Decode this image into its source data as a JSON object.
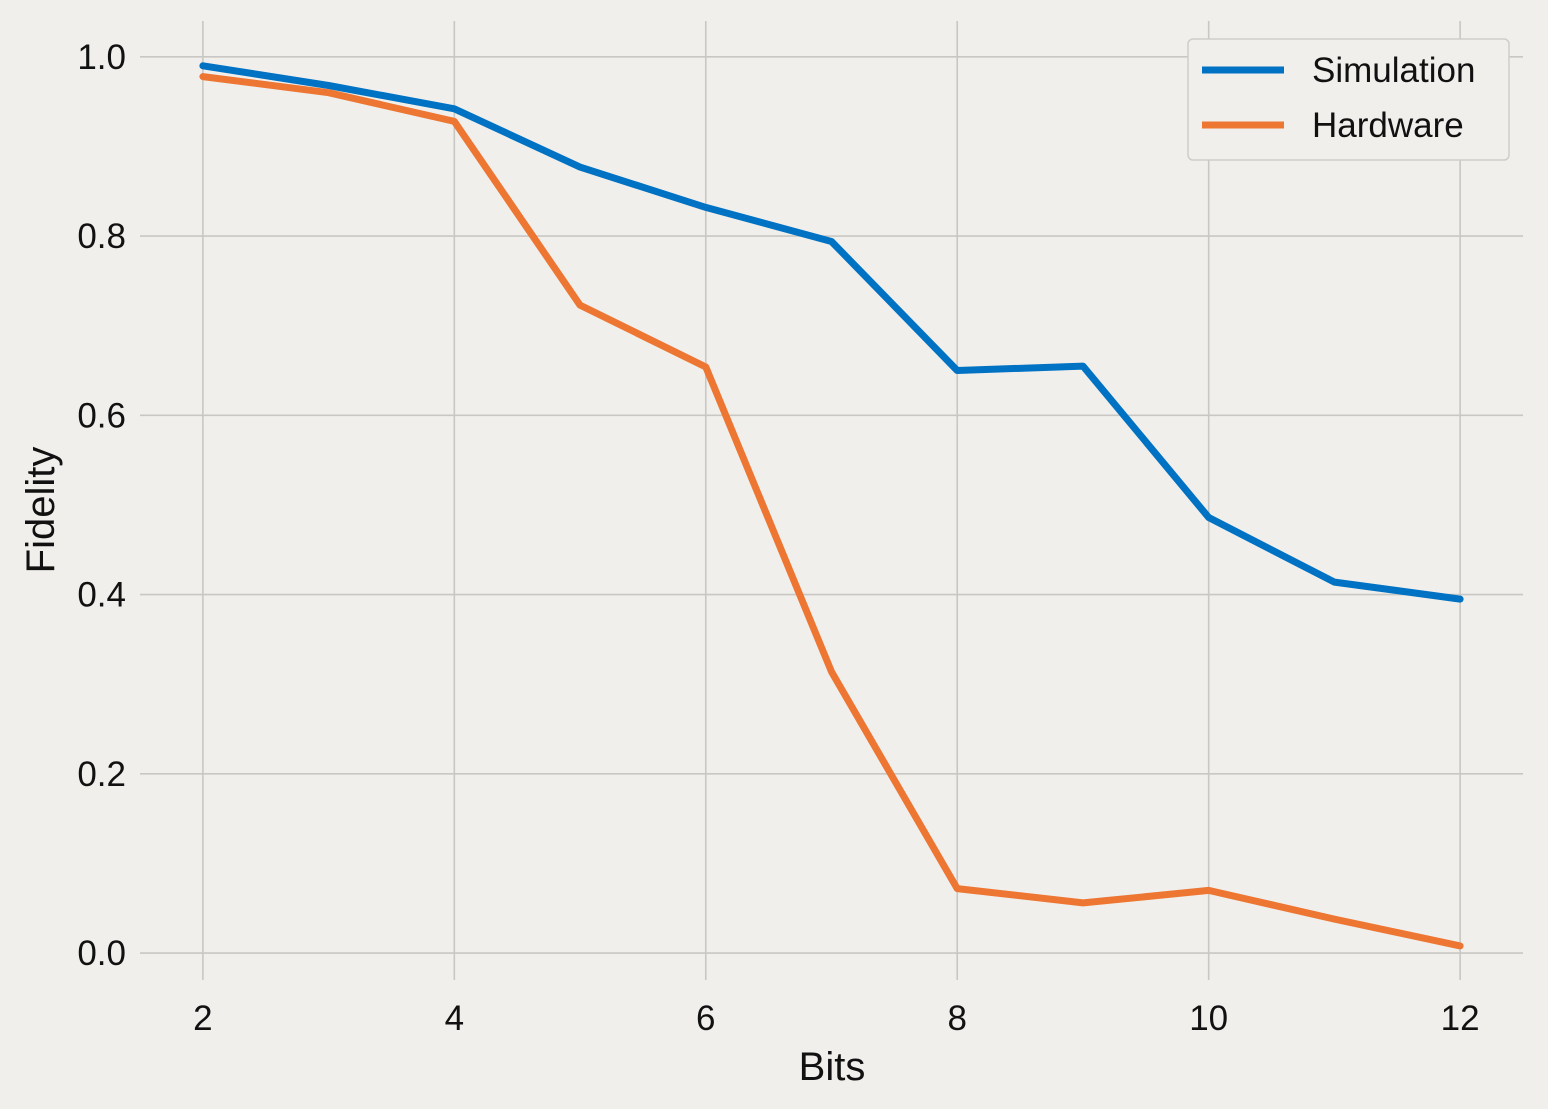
{
  "chart_data": {
    "type": "line",
    "title": "",
    "xlabel": "Bits",
    "ylabel": "Fidelity",
    "x": [
      2,
      3,
      4,
      5,
      6,
      7,
      8,
      9,
      10,
      11,
      12
    ],
    "xlim": [
      1.5,
      12.5
    ],
    "ylim": [
      -0.03,
      1.04
    ],
    "xticks": [
      2,
      4,
      6,
      8,
      10,
      12
    ],
    "yticks": [
      0.0,
      0.2,
      0.4,
      0.6,
      0.8,
      1.0
    ],
    "xtick_labels": [
      "2",
      "4",
      "6",
      "8",
      "10",
      "12"
    ],
    "ytick_labels": [
      "0.0",
      "0.2",
      "0.4",
      "0.6",
      "0.8",
      "1.0"
    ],
    "grid": true,
    "legend_position": "top-right",
    "series": [
      {
        "name": "Simulation",
        "color": "#0072c3",
        "values": [
          0.99,
          0.968,
          0.942,
          0.877,
          0.832,
          0.794,
          0.65,
          0.655,
          0.486,
          0.414,
          0.395
        ]
      },
      {
        "name": "Hardware",
        "color": "#ed7633",
        "values": [
          0.978,
          0.96,
          0.928,
          0.723,
          0.654,
          0.314,
          0.072,
          0.056,
          0.07,
          0.038,
          0.008
        ]
      }
    ]
  }
}
